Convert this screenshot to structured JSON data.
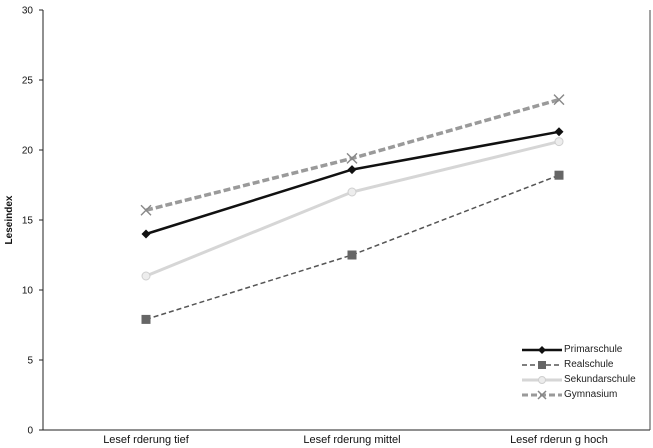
{
  "chart_data": {
    "type": "line",
    "ylabel": "Leseindex",
    "xlabel": "",
    "ylim": [
      0,
      30
    ],
    "yticks": [
      "0",
      "5",
      "10",
      "15",
      "20",
      "25",
      "30"
    ],
    "categories": [
      "Lesef rderung tief",
      "Lesef rderung mittel",
      "Lesef rderun g hoch"
    ],
    "grid": false,
    "legend_position": "bottom-right",
    "series": [
      {
        "name": "Primarschule",
        "values": [
          14.0,
          18.6,
          21.3
        ],
        "color": "#111111",
        "dash": "solid",
        "marker": "diamond"
      },
      {
        "name": "Realschule",
        "values": [
          7.9,
          12.5,
          18.2
        ],
        "color": "#555555",
        "dash": "dashed",
        "marker": "square"
      },
      {
        "name": "Sekundarschule",
        "values": [
          11.0,
          17.0,
          20.6
        ],
        "color": "#d6d6d6",
        "dash": "solid",
        "marker": "circle"
      },
      {
        "name": "Gymnasium",
        "values": [
          15.7,
          19.4,
          23.6
        ],
        "color": "#9a9a9a",
        "dash": "dashed",
        "marker": "x"
      }
    ]
  }
}
